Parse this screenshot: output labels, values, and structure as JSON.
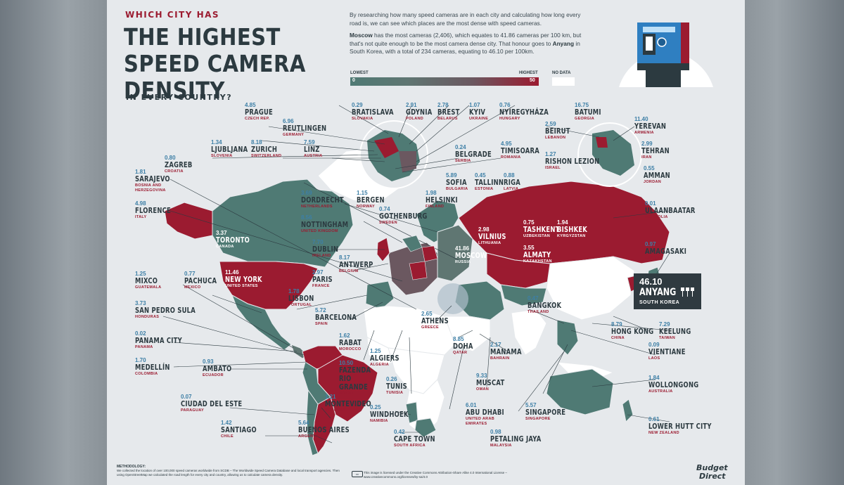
{
  "header": {
    "subtitle": "WHICH CITY HAS",
    "title": "THE HIGHEST SPEED CAMERA DENSITY",
    "title_sub": "IN EVERY COUNTRY?"
  },
  "intro": {
    "p1": "By researching how many speed cameras are in each city and calculating how long every road is, we can see which places are the most dense with speed cameras.",
    "p2_lead": "Moscow",
    "p2_a": " has the most cameras (2,406), which equates to 41.86 cameras per 100 km, but that's not quite enough to be the most camera dense city. That honour goes to ",
    "p2_lead2": "Anyang",
    "p2_b": " in South Korea, with a total of 234 cameras, equating to 46.10 per 100km."
  },
  "legend": {
    "lowest": "LOWEST",
    "highest": "HIGHEST",
    "min": "0",
    "max": "50",
    "no_data": "NO DATA",
    "low_color": "#4f7a74",
    "high_color": "#9b1b30"
  },
  "highlight": {
    "value": "46.10",
    "city": "ANYANG",
    "country": "SOUTH KOREA"
  },
  "cities": [
    {
      "value": "4.85",
      "city": "PRAGUE",
      "country": "CZECH REP."
    },
    {
      "value": "0.29",
      "city": "BRATISLAVA",
      "country": "SLOVAKIA"
    },
    {
      "value": "2.91",
      "city": "GDYNIA",
      "country": "POLAND"
    },
    {
      "value": "2.78",
      "city": "BREST",
      "country": "BELARUS"
    },
    {
      "value": "1.07",
      "city": "KYIV",
      "country": "UKRAINE"
    },
    {
      "value": "0.76",
      "city": "NYÍREGYHÁZA",
      "country": "HUNGARY"
    },
    {
      "value": "16.75",
      "city": "BATUMI",
      "country": "GEORGIA"
    },
    {
      "value": "6.96",
      "city": "REUTLINGEN",
      "country": "GERMANY"
    },
    {
      "value": "11.40",
      "city": "YEREVAN",
      "country": "ARMENIA"
    },
    {
      "value": "1.34",
      "city": "LJUBLJANA",
      "country": "SLOVENIA"
    },
    {
      "value": "8.18",
      "city": "ZURICH",
      "country": "SWITZERLAND"
    },
    {
      "value": "7.59",
      "city": "LINZ",
      "country": "AUSTRIA"
    },
    {
      "value": "2.59",
      "city": "BEIRUT",
      "country": "LEBANON"
    },
    {
      "value": "2.99",
      "city": "TEHRAN",
      "country": "IRAN"
    },
    {
      "value": "0.80",
      "city": "ZAGREB",
      "country": "CROATIA"
    },
    {
      "value": "0.24",
      "city": "BELGRADE",
      "country": "SERBIA"
    },
    {
      "value": "4.95",
      "city": "TIMISOARA",
      "country": "ROMANIA"
    },
    {
      "value": "1.27",
      "city": "RISHON LEZION",
      "country": "ISRAEL"
    },
    {
      "value": "1.81",
      "city": "SARAJEVO",
      "country": "BOSNIA AND HERZEGOVINA"
    },
    {
      "value": "0.55",
      "city": "AMMAN",
      "country": "JORDAN"
    },
    {
      "value": "5.89",
      "city": "SOFIA",
      "country": "BULGARIA"
    },
    {
      "value": "0.45",
      "city": "TALLINN",
      "country": "ESTONIA"
    },
    {
      "value": "0.88",
      "city": "RIGA",
      "country": "LATVIA"
    },
    {
      "value": "4.98",
      "city": "FLORENCE",
      "country": "ITALY"
    },
    {
      "value": "3.69",
      "city": "DORDRECHT",
      "country": "NETHERLANDS"
    },
    {
      "value": "1.15",
      "city": "BERGEN",
      "country": "NORWAY"
    },
    {
      "value": "1.98",
      "city": "HELSINKI",
      "country": "FINLAND"
    },
    {
      "value": "0.01",
      "city": "ULAANBAATAR",
      "country": "MONGOLIA"
    },
    {
      "value": "0.74",
      "city": "GOTHENBURG",
      "country": "SWEDEN"
    },
    {
      "value": "8.56",
      "city": "NOTTINGHAM",
      "country": "UNITED KINGDOM"
    },
    {
      "value": "3.37",
      "city": "TORONTO",
      "country": "CANADA"
    },
    {
      "value": "2.98",
      "city": "VILNIUS",
      "country": "LITHUANIA"
    },
    {
      "value": "0.75",
      "city": "TASHKENT",
      "country": "UZBEKISTAN"
    },
    {
      "value": "1.94",
      "city": "BISHKEK",
      "country": "KYRGYZSTAN"
    },
    {
      "value": "7.70",
      "city": "DUBLIN",
      "country": "IRELAND"
    },
    {
      "value": "0.97",
      "city": "AMAGASAKI",
      "country": "JAPAN"
    },
    {
      "value": "41.86",
      "city": "MOSCOW",
      "country": "RUSSIA"
    },
    {
      "value": "3.55",
      "city": "ALMATY",
      "country": "KAZAKHSTAN"
    },
    {
      "value": "8.17",
      "city": "ANTWERP",
      "country": "BELGIUM"
    },
    {
      "value": "1.25",
      "city": "MIXCO",
      "country": "GUATEMALA"
    },
    {
      "value": "0.77",
      "city": "PACHUCA",
      "country": "MEXICO"
    },
    {
      "value": "11.46",
      "city": "NEW YORK",
      "country": "UNITED STATES"
    },
    {
      "value": "2.97",
      "city": "PARIS",
      "country": "FRANCE"
    },
    {
      "value": "1.78",
      "city": "LISBON",
      "country": "PORTUGAL"
    },
    {
      "value": "0.47",
      "city": "BANGKOK",
      "country": "THAILAND"
    },
    {
      "value": "3.73",
      "city": "SAN PEDRO SULA",
      "country": "HONDURAS"
    },
    {
      "value": "5.72",
      "city": "BARCELONA",
      "country": "SPAIN"
    },
    {
      "value": "2.65",
      "city": "ATHENS",
      "country": "GREECE"
    },
    {
      "value": "8.79",
      "city": "HONG KONG",
      "country": "CHINA"
    },
    {
      "value": "7.29",
      "city": "KEELUNG",
      "country": "TAIWAN"
    },
    {
      "value": "0.02",
      "city": "PANAMA CITY",
      "country": "PANAMA"
    },
    {
      "value": "1.62",
      "city": "RABAT",
      "country": "MOROCCO"
    },
    {
      "value": "8.85",
      "city": "DOHA",
      "country": "QATAR"
    },
    {
      "value": "2.17",
      "city": "MANAMA",
      "country": "BAHRAIN"
    },
    {
      "value": "0.09",
      "city": "VIENTIANE",
      "country": "LAOS"
    },
    {
      "value": "1.25",
      "city": "ALGIERS",
      "country": "ALGERIA"
    },
    {
      "value": "1.70",
      "city": "MEDELLÍN",
      "country": "COLOMBIA"
    },
    {
      "value": "0.93",
      "city": "AMBATO",
      "country": "ECUADOR"
    },
    {
      "value": "10.50",
      "city": "FAZENDA RIO GRANDE",
      "country": "BRAZIL"
    },
    {
      "value": "9.33",
      "city": "MUSCAT",
      "country": "OMAN"
    },
    {
      "value": "0.26",
      "city": "TUNIS",
      "country": "TUNISIA"
    },
    {
      "value": "1.84",
      "city": "WOLLONGONG",
      "country": "AUSTRALIA"
    },
    {
      "value": "0.07",
      "city": "CIUDAD DEL ESTE",
      "country": "PARAGUAY"
    },
    {
      "value": "1.21",
      "city": "MONTEVIDEO",
      "country": "URUGUAY"
    },
    {
      "value": "6.01",
      "city": "ABU DHABI",
      "country": "UNITED ARAB EMIRATES"
    },
    {
      "value": "0.25",
      "city": "WINDHOEK",
      "country": "NAMIBIA"
    },
    {
      "value": "5.57",
      "city": "SINGAPORE",
      "country": "SINGAPORE"
    },
    {
      "value": "1.42",
      "city": "SANTIAGO",
      "country": "CHILE"
    },
    {
      "value": "5.64",
      "city": "BUENOS AIRES",
      "country": "ARGENTINA"
    },
    {
      "value": "0.42",
      "city": "CAPE TOWN",
      "country": "SOUTH AFRICA"
    },
    {
      "value": "0.98",
      "city": "PETALING JAYA",
      "country": "MALAYSIA"
    },
    {
      "value": "0.61",
      "city": "LOWER HUTT CITY",
      "country": "NEW ZEALAND"
    }
  ],
  "footer": {
    "methodology_heading": "METHODOLOGY:",
    "methodology": "We collected the location of over 100,000 speed cameras worldwide from SCDB – The Worldwide Speed Camera Database and local transport agencies. Then using OpenStreetMap we calculated the road length for every city and country, allowing us to calculate camera density.",
    "license_badge": "cc",
    "license": "This image is licensed under the Creative Commons Attribution-Share Alike 4.0 International License – www.creativecommons.org/licenses/by-sa/4.0",
    "brand_line1": "Budget",
    "brand_line2": "Direct"
  }
}
